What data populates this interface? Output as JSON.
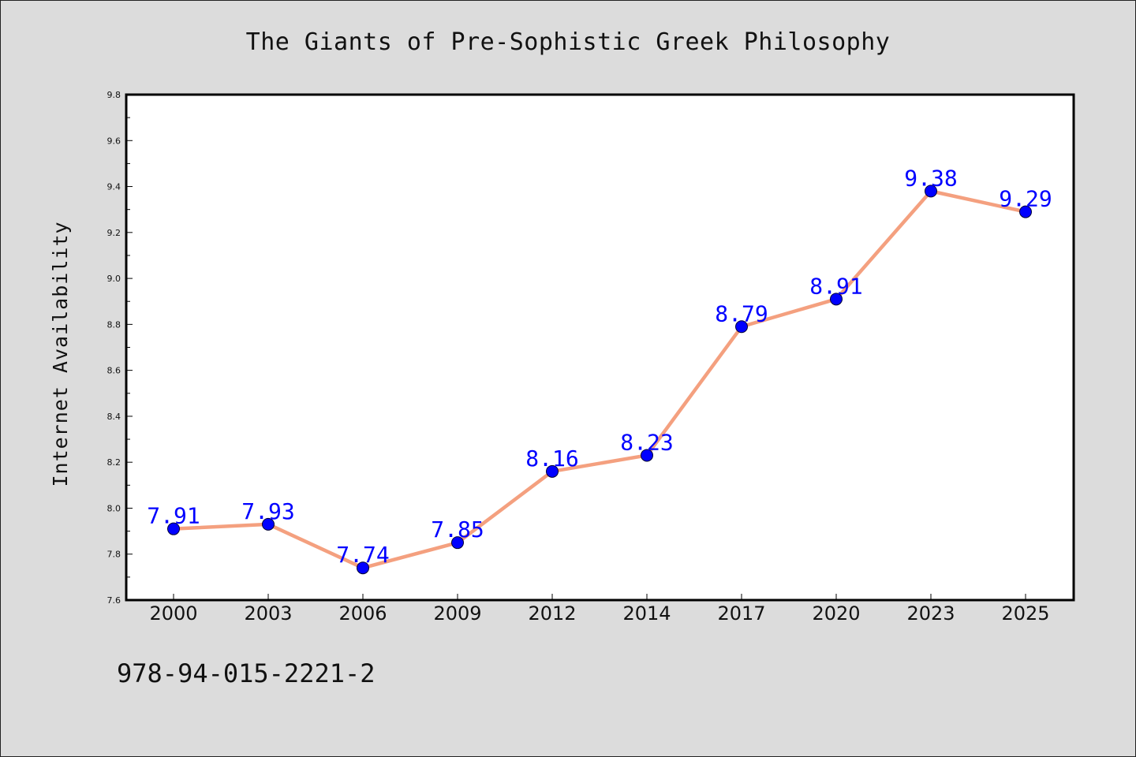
{
  "chart_data": {
    "type": "line",
    "title": "The Giants of Pre-Sophistic Greek Philosophy",
    "xlabel": "",
    "ylabel": "Internet Availability",
    "categories": [
      "2000",
      "2003",
      "2006",
      "2009",
      "2012",
      "2014",
      "2017",
      "2020",
      "2023",
      "2025"
    ],
    "series": [
      {
        "values": [
          7.91,
          7.93,
          7.74,
          7.85,
          8.16,
          8.23,
          8.79,
          8.91,
          9.38,
          9.29
        ],
        "line_color": "#f4a07f",
        "marker_color": "#0000ff",
        "label_color": "#0000ff"
      }
    ],
    "data_labels": [
      "7.91",
      "7.93",
      "7.74",
      "7.85",
      "8.16",
      "8.23",
      "8.79",
      "8.91",
      "9.38",
      "9.29"
    ],
    "ylim": [
      7.6,
      9.8
    ],
    "yticks": [
      "7.6",
      "7.8",
      "8.0",
      "8.2",
      "8.4",
      "8.6",
      "8.8",
      "9.0",
      "9.2",
      "9.4",
      "9.6",
      "9.8"
    ],
    "grid": false,
    "legend": "none"
  },
  "footer": {
    "text": "978-94-015-2221-2"
  },
  "colors": {
    "background": "#dcdcdc",
    "plot_background": "#ffffff"
  }
}
